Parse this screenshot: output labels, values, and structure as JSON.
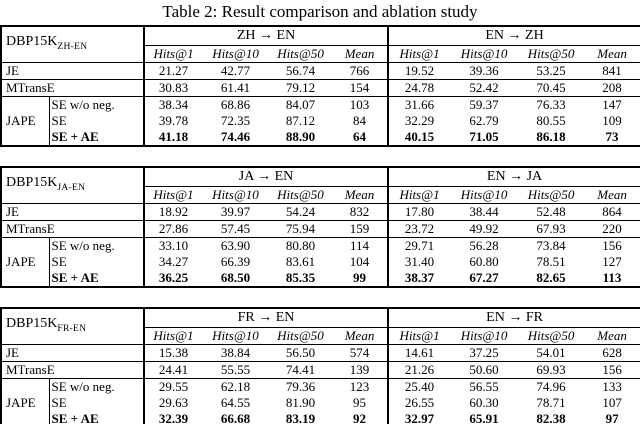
{
  "page": {
    "title": "Table 2: Result comparison and ablation study",
    "text_color": "#000000",
    "background_color": "#ffffff"
  },
  "tables": [
    {
      "dataset": "DBP15K",
      "dataset_sub": "ZH-EN",
      "left_header": "ZH → EN",
      "right_header": "EN → ZH",
      "metrics": [
        "Hits@1",
        "Hits@10",
        "Hits@50",
        "Mean"
      ],
      "simple_rows": [
        {
          "label": "JE",
          "bold": false,
          "left": [
            "21.27",
            "42.77",
            "56.74",
            "766"
          ],
          "right": [
            "19.52",
            "39.36",
            "53.25",
            "841"
          ]
        },
        {
          "label": "MTransE",
          "bold": false,
          "left": [
            "30.83",
            "61.41",
            "79.12",
            "154"
          ],
          "right": [
            "24.78",
            "52.42",
            "70.45",
            "208"
          ]
        }
      ],
      "group_label": "JAPE",
      "group_rows": [
        {
          "label": "SE w/o neg.",
          "bold": false,
          "left": [
            "38.34",
            "68.86",
            "84.07",
            "103"
          ],
          "right": [
            "31.66",
            "59.37",
            "76.33",
            "147"
          ]
        },
        {
          "label": "SE",
          "bold": false,
          "left": [
            "39.78",
            "72.35",
            "87.12",
            "84"
          ],
          "right": [
            "32.29",
            "62.79",
            "80.55",
            "109"
          ]
        },
        {
          "label": "SE + AE",
          "bold": true,
          "left": [
            "41.18",
            "74.46",
            "88.90",
            "64"
          ],
          "right": [
            "40.15",
            "71.05",
            "86.18",
            "73"
          ]
        }
      ]
    },
    {
      "dataset": "DBP15K",
      "dataset_sub": "JA-EN",
      "left_header": "JA → EN",
      "right_header": "EN → JA",
      "metrics": [
        "Hits@1",
        "Hits@10",
        "Hits@50",
        "Mean"
      ],
      "simple_rows": [
        {
          "label": "JE",
          "bold": false,
          "left": [
            "18.92",
            "39.97",
            "54.24",
            "832"
          ],
          "right": [
            "17.80",
            "38.44",
            "52.48",
            "864"
          ]
        },
        {
          "label": "MTransE",
          "bold": false,
          "left": [
            "27.86",
            "57.45",
            "75.94",
            "159"
          ],
          "right": [
            "23.72",
            "49.92",
            "67.93",
            "220"
          ]
        }
      ],
      "group_label": "JAPE",
      "group_rows": [
        {
          "label": "SE w/o neg.",
          "bold": false,
          "left": [
            "33.10",
            "63.90",
            "80.80",
            "114"
          ],
          "right": [
            "29.71",
            "56.28",
            "73.84",
            "156"
          ]
        },
        {
          "label": "SE",
          "bold": false,
          "left": [
            "34.27",
            "66.39",
            "83.61",
            "104"
          ],
          "right": [
            "31.40",
            "60.80",
            "78.51",
            "127"
          ]
        },
        {
          "label": "SE + AE",
          "bold": true,
          "left": [
            "36.25",
            "68.50",
            "85.35",
            "99"
          ],
          "right": [
            "38.37",
            "67.27",
            "82.65",
            "113"
          ]
        }
      ]
    },
    {
      "dataset": "DBP15K",
      "dataset_sub": "FR-EN",
      "left_header": "FR → EN",
      "right_header": "EN → FR",
      "metrics": [
        "Hits@1",
        "Hits@10",
        "Hits@50",
        "Mean"
      ],
      "simple_rows": [
        {
          "label": "JE",
          "bold": false,
          "left": [
            "15.38",
            "38.84",
            "56.50",
            "574"
          ],
          "right": [
            "14.61",
            "37.25",
            "54.01",
            "628"
          ]
        },
        {
          "label": "MTransE",
          "bold": false,
          "left": [
            "24.41",
            "55.55",
            "74.41",
            "139"
          ],
          "right": [
            "21.26",
            "50.60",
            "69.93",
            "156"
          ]
        }
      ],
      "group_label": "JAPE",
      "group_rows": [
        {
          "label": "SE w/o neg.",
          "bold": false,
          "left": [
            "29.55",
            "62.18",
            "79.36",
            "123"
          ],
          "right": [
            "25.40",
            "56.55",
            "74.96",
            "133"
          ]
        },
        {
          "label": "SE",
          "bold": false,
          "left": [
            "29.63",
            "64.55",
            "81.90",
            "95"
          ],
          "right": [
            "26.55",
            "60.30",
            "78.71",
            "107"
          ]
        },
        {
          "label": "SE + AE",
          "bold": true,
          "left": [
            "32.39",
            "66.68",
            "83.19",
            "92"
          ],
          "right": [
            "32.97",
            "65.91",
            "82.38",
            "97"
          ]
        }
      ]
    }
  ]
}
